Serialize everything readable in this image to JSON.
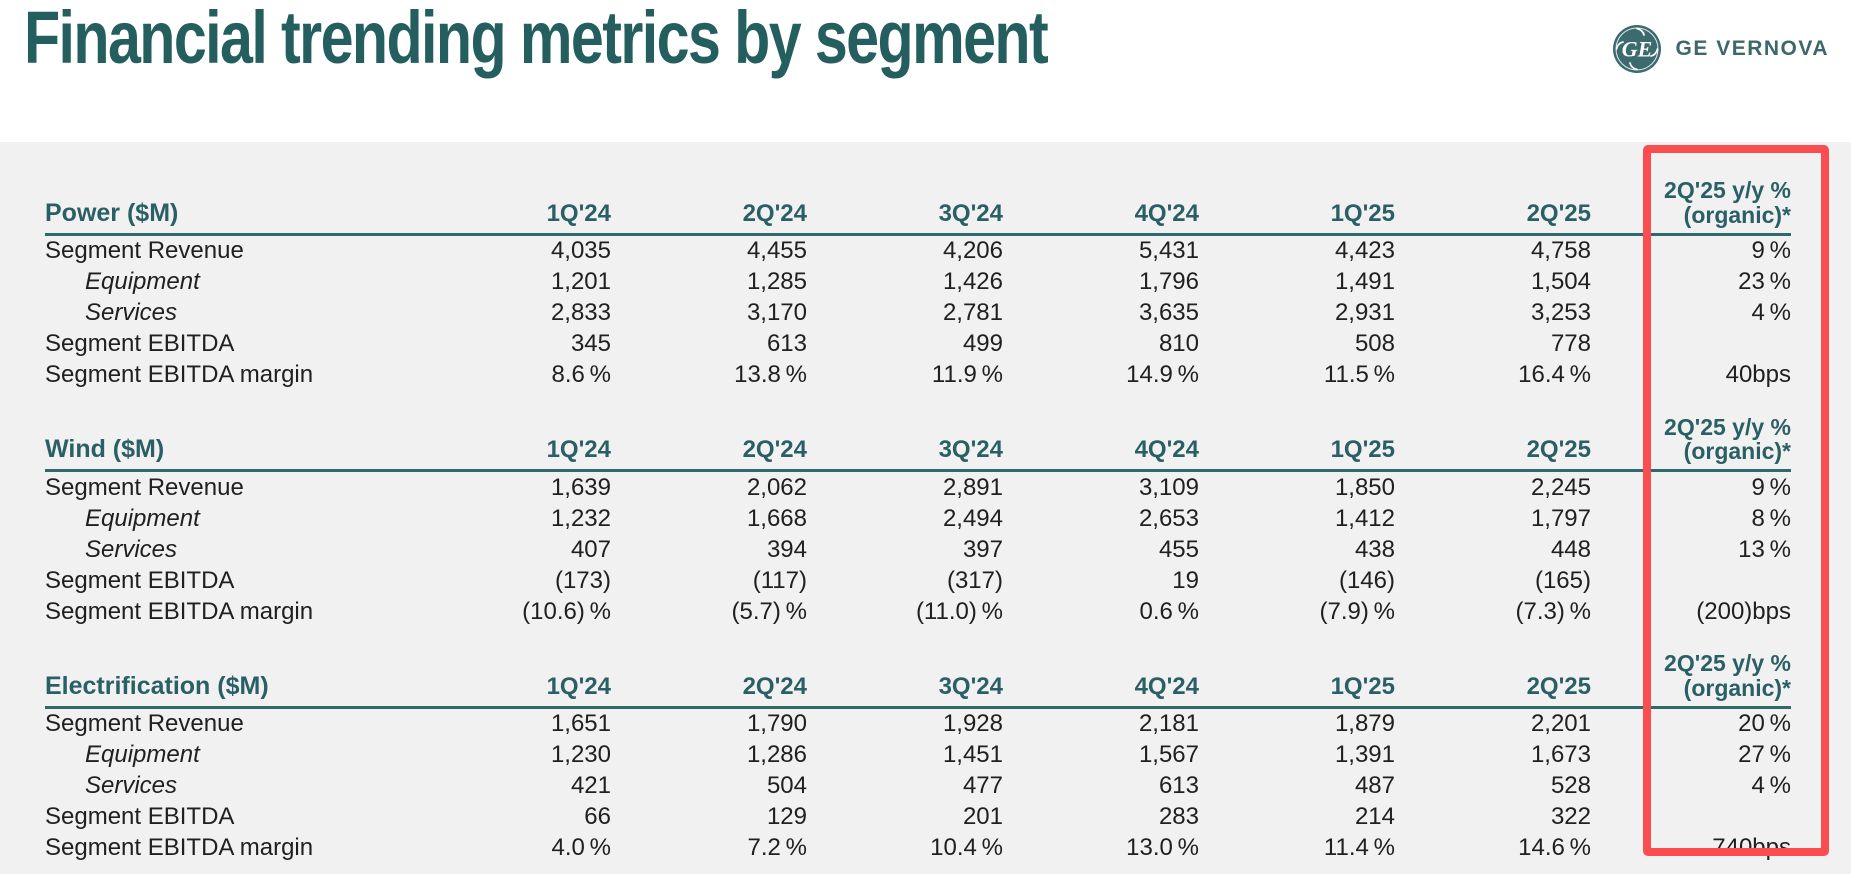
{
  "header": {
    "title": "Financial trending metrics by segment",
    "brand": "GE VERNOVA"
  },
  "colors": {
    "accent_teal": "#2a6065",
    "rule_teal": "#2f6a6b",
    "highlight_red": "#f94d4f",
    "panel_gray": "#f1f1f2",
    "text_dark": "#202022"
  },
  "table": {
    "quarter_columns": [
      "1Q'24",
      "2Q'24",
      "3Q'24",
      "4Q'24",
      "1Q'25",
      "2Q'25"
    ],
    "yoy_column_line1": "2Q'25 y/y %",
    "yoy_column_line2": "(organic)*"
  },
  "sections": [
    {
      "title": "Power ($M)",
      "rows": [
        {
          "label": "Segment Revenue",
          "style": "normal",
          "values": [
            "4,035",
            "4,455",
            "4,206",
            "5,431",
            "4,423",
            "4,758"
          ],
          "yoy": "9 %"
        },
        {
          "label": "Equipment",
          "style": "italic",
          "values": [
            "1,201",
            "1,285",
            "1,426",
            "1,796",
            "1,491",
            "1,504"
          ],
          "yoy": "23 %"
        },
        {
          "label": "Services",
          "style": "italic",
          "values": [
            "2,833",
            "3,170",
            "2,781",
            "3,635",
            "2,931",
            "3,253"
          ],
          "yoy": "4 %"
        },
        {
          "label": "Segment EBITDA",
          "style": "normal",
          "values": [
            "345",
            "613",
            "499",
            "810",
            "508",
            "778"
          ],
          "yoy": ""
        },
        {
          "label": "Segment EBITDA margin",
          "style": "normal",
          "values": [
            "8.6 %",
            "13.8 %",
            "11.9 %",
            "14.9 %",
            "11.5 %",
            "16.4 %"
          ],
          "yoy": "40bps"
        }
      ]
    },
    {
      "title": "Wind ($M)",
      "rows": [
        {
          "label": "Segment Revenue",
          "style": "normal",
          "values": [
            "1,639",
            "2,062",
            "2,891",
            "3,109",
            "1,850",
            "2,245"
          ],
          "yoy": "9 %"
        },
        {
          "label": "Equipment",
          "style": "italic",
          "values": [
            "1,232",
            "1,668",
            "2,494",
            "2,653",
            "1,412",
            "1,797"
          ],
          "yoy": "8 %"
        },
        {
          "label": "Services",
          "style": "italic",
          "values": [
            "407",
            "394",
            "397",
            "455",
            "438",
            "448"
          ],
          "yoy": "13 %"
        },
        {
          "label": "Segment EBITDA",
          "style": "normal",
          "values": [
            "(173)",
            "(117)",
            "(317)",
            "19",
            "(146)",
            "(165)"
          ],
          "yoy": ""
        },
        {
          "label": "Segment EBITDA margin",
          "style": "normal",
          "values": [
            "(10.6) %",
            "(5.7) %",
            "(11.0) %",
            "0.6 %",
            "(7.9) %",
            "(7.3) %"
          ],
          "yoy": "(200)bps"
        }
      ]
    },
    {
      "title": "Electrification ($M)",
      "rows": [
        {
          "label": "Segment Revenue",
          "style": "normal",
          "values": [
            "1,651",
            "1,790",
            "1,928",
            "2,181",
            "1,879",
            "2,201"
          ],
          "yoy": "20 %"
        },
        {
          "label": "Equipment",
          "style": "italic",
          "values": [
            "1,230",
            "1,286",
            "1,451",
            "1,567",
            "1,391",
            "1,673"
          ],
          "yoy": "27 %"
        },
        {
          "label": "Services",
          "style": "italic",
          "values": [
            "421",
            "504",
            "477",
            "613",
            "487",
            "528"
          ],
          "yoy": "4 %"
        },
        {
          "label": "Segment EBITDA",
          "style": "normal",
          "values": [
            "66",
            "129",
            "201",
            "283",
            "214",
            "322"
          ],
          "yoy": ""
        },
        {
          "label": "Segment EBITDA margin",
          "style": "normal",
          "values": [
            "4.0 %",
            "7.2 %",
            "10.4 %",
            "13.0 %",
            "11.4 %",
            "14.6 %"
          ],
          "yoy": "740bps"
        }
      ]
    }
  ]
}
